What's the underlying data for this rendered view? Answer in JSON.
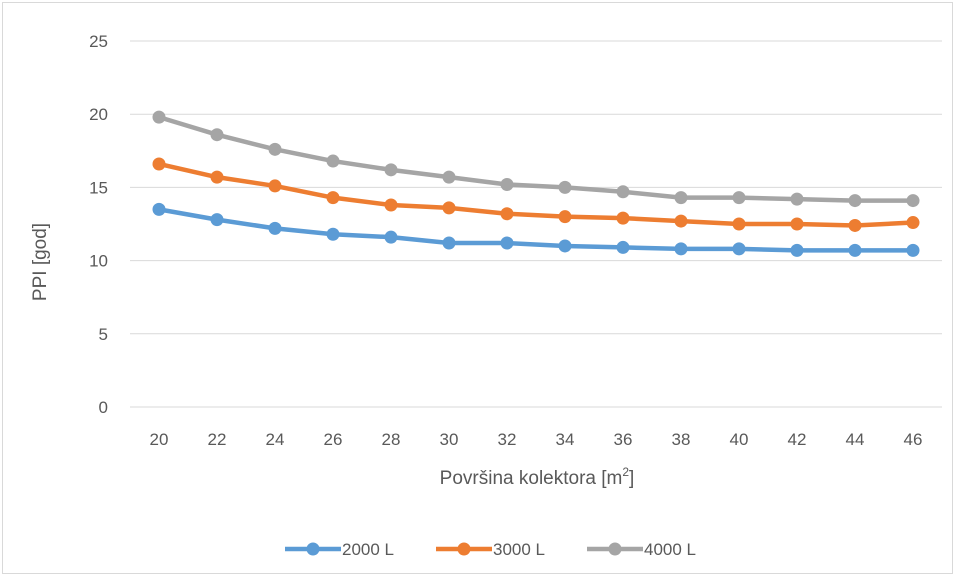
{
  "chart_data": {
    "type": "line",
    "title": "",
    "xlabel": "Površina kolektora [m",
    "xlabel_sup": "2",
    "xlabel_end": "]",
    "ylabel": "PPI [god]",
    "ylim": [
      0,
      25
    ],
    "yticks": [
      0,
      5,
      10,
      15,
      20,
      25
    ],
    "categories": [
      "20",
      "22",
      "24",
      "26",
      "28",
      "30",
      "32",
      "34",
      "36",
      "38",
      "40",
      "42",
      "44",
      "46"
    ],
    "series": [
      {
        "name": "2000 L",
        "color": "#5b9bd5",
        "values": [
          13.5,
          12.8,
          12.2,
          11.8,
          11.6,
          11.2,
          11.2,
          11.0,
          10.9,
          10.8,
          10.8,
          10.7,
          10.7,
          10.7
        ]
      },
      {
        "name": "3000 L",
        "color": "#ed7d31",
        "values": [
          16.6,
          15.7,
          15.1,
          14.3,
          13.8,
          13.6,
          13.2,
          13.0,
          12.9,
          12.7,
          12.5,
          12.5,
          12.4,
          12.6
        ]
      },
      {
        "name": "4000 L",
        "color": "#a5a5a5",
        "values": [
          19.8,
          18.6,
          17.6,
          16.8,
          16.2,
          15.7,
          15.2,
          15.0,
          14.7,
          14.3,
          14.3,
          14.2,
          14.1,
          14.1
        ]
      }
    ],
    "grid": true,
    "legend": "bottom"
  }
}
